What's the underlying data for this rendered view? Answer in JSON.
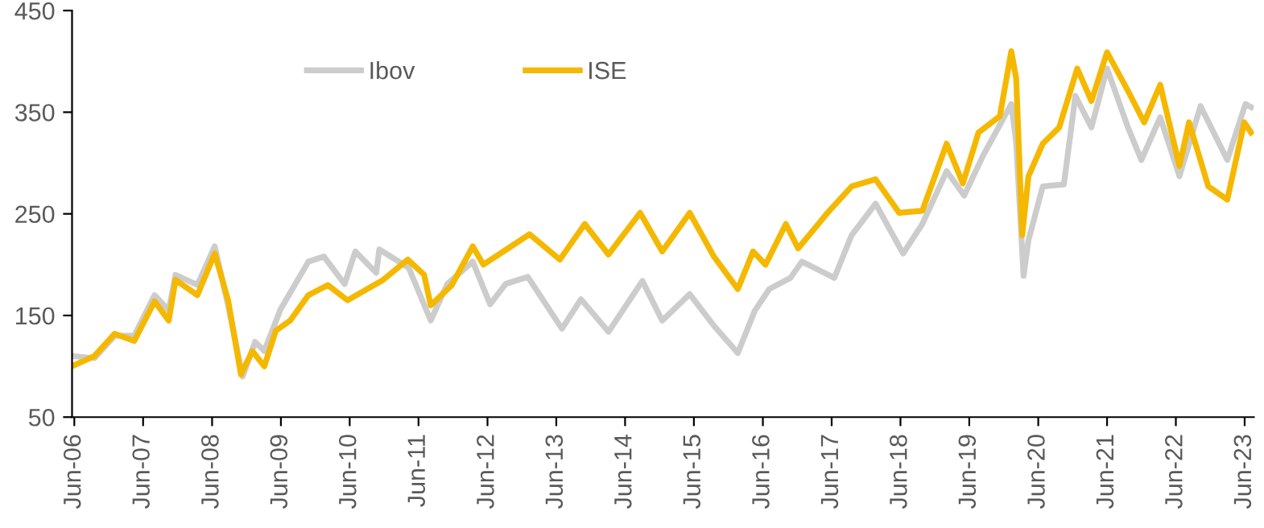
{
  "chart_data": {
    "type": "line",
    "xlim": [
      "2006-05-20",
      "2023-07-20"
    ],
    "ylim": [
      50,
      450
    ],
    "yticks": [
      50,
      150,
      250,
      350,
      450
    ],
    "xticks": [
      {
        "value": "2006-06-01",
        "label": "Jun-06"
      },
      {
        "value": "2007-06-01",
        "label": "Jun-07"
      },
      {
        "value": "2008-06-01",
        "label": "Jun-08"
      },
      {
        "value": "2009-06-01",
        "label": "Jun-09"
      },
      {
        "value": "2010-06-01",
        "label": "Jun-10"
      },
      {
        "value": "2011-06-01",
        "label": "Jun-11"
      },
      {
        "value": "2012-06-01",
        "label": "Jun-12"
      },
      {
        "value": "2013-06-01",
        "label": "Jun-13"
      },
      {
        "value": "2014-06-01",
        "label": "Jun-14"
      },
      {
        "value": "2015-06-01",
        "label": "Jun-15"
      },
      {
        "value": "2016-06-01",
        "label": "Jun-16"
      },
      {
        "value": "2017-06-01",
        "label": "Jun-17"
      },
      {
        "value": "2018-06-01",
        "label": "Jun-18"
      },
      {
        "value": "2019-06-01",
        "label": "Jun-19"
      },
      {
        "value": "2020-06-01",
        "label": "Jun-20"
      },
      {
        "value": "2021-06-01",
        "label": "Jun-21"
      },
      {
        "value": "2022-06-01",
        "label": "Jun-22"
      },
      {
        "value": "2023-06-01",
        "label": "Jun-23"
      }
    ],
    "grid": false,
    "legend": "top left",
    "marker": "none",
    "line_style": "solid",
    "series": [
      {
        "name": "Ibov",
        "color": "#cccccc",
        "x": [
          "2006-06-01",
          "2006-09-15",
          "2007-01-01",
          "2007-04-15",
          "2007-08-01",
          "2007-10-15",
          "2007-11-20",
          "2008-03-15",
          "2008-06-15",
          "2008-08-25",
          "2008-11-10",
          "2009-01-15",
          "2009-03-05",
          "2009-05-30",
          "2009-10-25",
          "2010-01-15",
          "2010-05-05",
          "2010-07-01",
          "2010-10-20",
          "2010-11-05",
          "2011-04-10",
          "2011-08-05",
          "2011-11-01",
          "2012-03-15",
          "2012-06-15",
          "2012-09-05",
          "2013-01-01",
          "2013-07-01",
          "2013-10-10",
          "2014-03-05",
          "2014-09-01",
          "2014-12-15",
          "2015-05-10",
          "2015-09-15",
          "2016-01-20",
          "2016-04-20",
          "2016-07-05",
          "2016-10-25",
          "2016-12-25",
          "2017-06-15",
          "2017-09-15",
          "2018-01-20",
          "2018-06-15",
          "2018-09-25",
          "2019-02-01",
          "2019-05-05",
          "2019-08-15",
          "2020-01-10",
          "2020-02-05",
          "2020-03-15",
          "2020-04-10",
          "2020-06-25",
          "2020-10-15",
          "2020-12-15",
          "2021-03-10",
          "2021-06-01",
          "2021-09-20",
          "2021-11-30",
          "2022-03-10",
          "2022-06-20",
          "2022-10-10",
          "2023-03-01",
          "2023-06-05",
          "2023-07-05"
        ],
        "values": [
          110,
          108,
          130,
          130,
          170,
          155,
          190,
          180,
          218,
          160,
          90,
          124,
          115,
          156,
          203,
          208,
          181,
          213,
          192,
          215,
          197,
          145,
          181,
          203,
          161,
          181,
          188,
          137,
          166,
          134,
          184,
          145,
          171,
          140,
          113,
          155,
          176,
          187,
          203,
          187,
          229,
          260,
          211,
          240,
          292,
          268,
          308,
          358,
          320,
          189,
          224,
          277,
          279,
          366,
          335,
          393,
          335,
          303,
          345,
          287,
          356,
          303,
          358,
          355
        ]
      },
      {
        "name": "ISE",
        "color": "#f5b800",
        "x": [
          "2006-06-01",
          "2006-09-15",
          "2007-01-01",
          "2007-04-15",
          "2007-08-01",
          "2007-10-15",
          "2007-11-20",
          "2008-03-15",
          "2008-06-15",
          "2008-08-25",
          "2008-11-01",
          "2009-01-01",
          "2009-03-05",
          "2009-05-05",
          "2009-07-20",
          "2009-10-25",
          "2010-02-05",
          "2010-05-20",
          "2010-11-25",
          "2011-04-05",
          "2011-07-01",
          "2011-08-05",
          "2011-11-25",
          "2012-03-15",
          "2012-05-10",
          "2012-09-10",
          "2013-01-10",
          "2013-06-20",
          "2013-10-30",
          "2014-03-05",
          "2014-08-20",
          "2014-12-15",
          "2015-05-10",
          "2015-09-15",
          "2016-01-20",
          "2016-04-10",
          "2016-06-15",
          "2016-10-01",
          "2016-12-05",
          "2017-05-10",
          "2017-09-15",
          "2018-01-20",
          "2018-05-25",
          "2018-09-25",
          "2019-02-01",
          "2019-04-28",
          "2019-07-20",
          "2019-11-10",
          "2020-01-10",
          "2020-02-05",
          "2020-03-08",
          "2020-04-10",
          "2020-06-25",
          "2020-09-20",
          "2020-12-25",
          "2021-03-10",
          "2021-06-01",
          "2021-09-20",
          "2021-12-15",
          "2022-03-10",
          "2022-06-20",
          "2022-08-10",
          "2022-11-20",
          "2023-03-01",
          "2023-05-30",
          "2023-07-05"
        ],
        "values": [
          101,
          110,
          132,
          125,
          164,
          145,
          185,
          170,
          211,
          165,
          92,
          115,
          100,
          135,
          145,
          170,
          180,
          165,
          185,
          205,
          190,
          160,
          180,
          218,
          200,
          215,
          230,
          205,
          240,
          210,
          251,
          213,
          251,
          208,
          176,
          213,
          200,
          240,
          216,
          251,
          277,
          284,
          251,
          253,
          319,
          280,
          330,
          346,
          410,
          383,
          229,
          287,
          319,
          335,
          393,
          361,
          409,
          371,
          340,
          377,
          297,
          340,
          277,
          264,
          340,
          330
        ]
      }
    ]
  }
}
